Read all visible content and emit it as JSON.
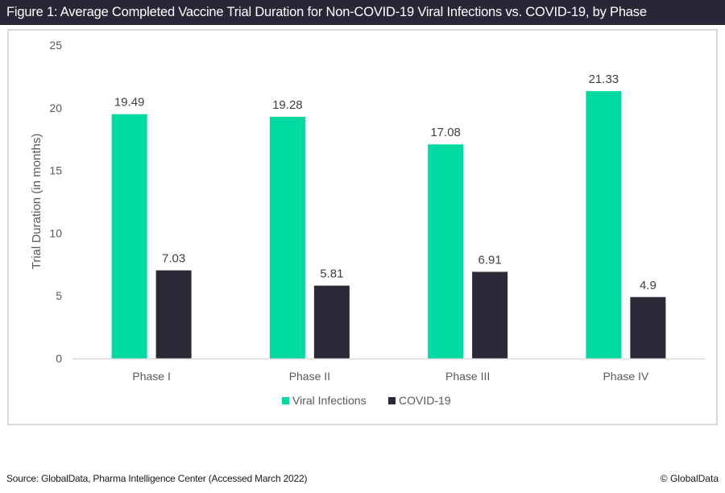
{
  "header": {
    "title": "Figure 1: Average Completed Vaccine Trial Duration for Non-COVID-19 Viral Infections vs. COVID-19, by Phase"
  },
  "footer": {
    "source": "Source: GlobalData, Pharma Intelligence Center (Accessed March 2022)",
    "copyright": "© GlobalData"
  },
  "colors": {
    "title_bar": "#2b2538",
    "viral_infections": "#00d9a1",
    "covid19": "#2b2838",
    "baseline": "#d9d9d9"
  },
  "chart_data": {
    "type": "bar",
    "title": "Figure 1: Average Completed Vaccine Trial Duration for Non-COVID-19 Viral Infections vs. COVID-19, by Phase",
    "xlabel": "",
    "ylabel": "Trial Duration (in months)",
    "ylim": [
      0,
      25
    ],
    "yticks": [
      0,
      5,
      10,
      15,
      20,
      25
    ],
    "grid": false,
    "legend_position": "bottom",
    "categories": [
      "Phase I",
      "Phase II",
      "Phase III",
      "Phase IV"
    ],
    "series": [
      {
        "name": "Viral Infections",
        "color": "#00d9a1",
        "values": [
          19.49,
          19.28,
          17.08,
          21.33
        ],
        "labels": [
          "19.49",
          "19.28",
          "17.08",
          "21.33"
        ]
      },
      {
        "name": "COVID-19",
        "color": "#2b2838",
        "values": [
          7.03,
          5.81,
          6.91,
          4.9
        ],
        "labels": [
          "7.03",
          "5.81",
          "6.91",
          "4.9"
        ]
      }
    ]
  }
}
